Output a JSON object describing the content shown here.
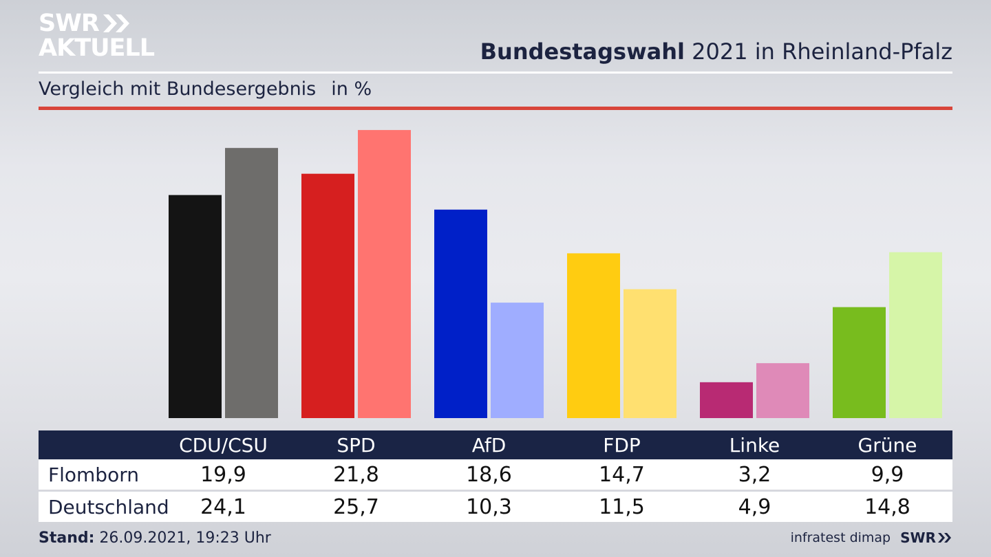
{
  "header": {
    "logo_line1": "SWR",
    "logo_line2": "AKTUELL",
    "title_bold": "Bundestagswahl",
    "title_rest": "2021 in Rheinland-Pfalz",
    "subtitle": "Vergleich mit Bundesergebnis",
    "unit": "in %"
  },
  "chart_data": {
    "type": "bar",
    "categories": [
      "CDU/CSU",
      "SPD",
      "AfD",
      "FDP",
      "Linke",
      "Grüne"
    ],
    "series": [
      {
        "name": "Flomborn",
        "values": [
          19.9,
          21.8,
          18.6,
          14.7,
          3.2,
          9.9
        ],
        "colors": [
          "#141414",
          "#d61f1f",
          "#0020c8",
          "#ffcc11",
          "#b82a73",
          "#78bc1e"
        ]
      },
      {
        "name": "Deutschland",
        "values": [
          24.1,
          25.7,
          10.3,
          11.5,
          4.9,
          14.8
        ],
        "colors": [
          "#6e6d6b",
          "#ff7470",
          "#9fadff",
          "#ffe070",
          "#df8ab8",
          "#d6f5a8"
        ]
      }
    ],
    "ylim": [
      0,
      27
    ]
  },
  "table": {
    "headers": [
      "CDU/CSU",
      "SPD",
      "AfD",
      "FDP",
      "Linke",
      "Grüne"
    ],
    "rows": [
      {
        "label": "Flomborn",
        "values": [
          "19,9",
          "21,8",
          "18,6",
          "14,7",
          "3,2",
          "9,9"
        ]
      },
      {
        "label": "Deutschland",
        "values": [
          "24,1",
          "25,7",
          "10,3",
          "11,5",
          "4,9",
          "14,8"
        ]
      }
    ]
  },
  "footer": {
    "stand_label": "Stand:",
    "stand_value": "26.09.2021, 19:23 Uhr",
    "source": "infratest dimap",
    "brand": "SWR"
  }
}
